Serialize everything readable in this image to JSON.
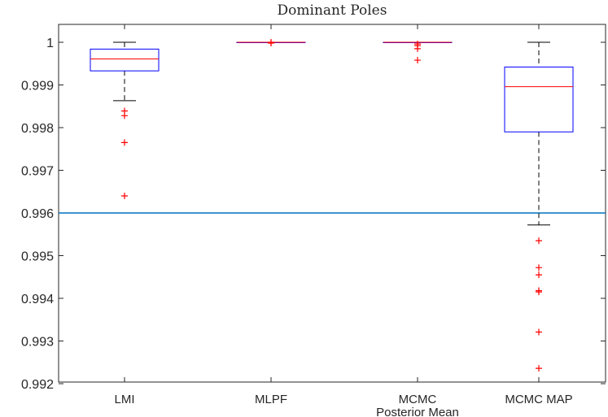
{
  "chart_data": {
    "type": "box",
    "title": "Dominant Poles",
    "xlabel": "",
    "ylabel": "",
    "ylim": [
      0.992,
      1.0004
    ],
    "yticks": [
      0.992,
      0.993,
      0.994,
      0.995,
      0.996,
      0.997,
      0.998,
      0.999,
      1
    ],
    "ytick_labels": [
      "0.992",
      "0.993",
      "0.994",
      "0.995",
      "0.996",
      "0.997",
      "0.998",
      "0.999",
      "1"
    ],
    "categories": [
      {
        "lines": [
          "LMI"
        ]
      },
      {
        "lines": [
          "MLPF"
        ]
      },
      {
        "lines": [
          "MCMC",
          "Posterior Mean"
        ]
      },
      {
        "lines": [
          "MCMC MAP"
        ]
      }
    ],
    "boxes": [
      {
        "q1": 0.99933,
        "median": 0.99961,
        "q3": 0.99984,
        "whisker_low": 0.99863,
        "whisker_high": 1.0,
        "outliers": [
          0.99839,
          0.99828,
          0.99765,
          0.9964
        ]
      },
      {
        "q1": 1.0,
        "median": 1.0,
        "q3": 1.0,
        "whisker_low": 1.0,
        "whisker_high": 1.0,
        "outliers": [
          0.99998,
          1.0
        ]
      },
      {
        "q1": 1.0,
        "median": 1.0,
        "q3": 1.0,
        "whisker_low": 1.0,
        "whisker_high": 1.0,
        "outliers": [
          0.99996,
          0.99992,
          0.99985,
          0.99958
        ]
      },
      {
        "q1": 0.9979,
        "median": 0.99896,
        "q3": 0.99942,
        "whisker_low": 0.99572,
        "whisker_high": 1.0,
        "outliers": [
          0.99535,
          0.99472,
          0.99455,
          0.99418,
          0.99415,
          0.99321,
          0.99236
        ]
      }
    ],
    "reference_line": {
      "y": 0.996
    },
    "colors": {
      "box": "#0000ff",
      "median": "#ff0000",
      "outlier": "#ff0000",
      "whisker": "#000000",
      "reference_line": "#0072bd",
      "axis": "#262626"
    }
  }
}
